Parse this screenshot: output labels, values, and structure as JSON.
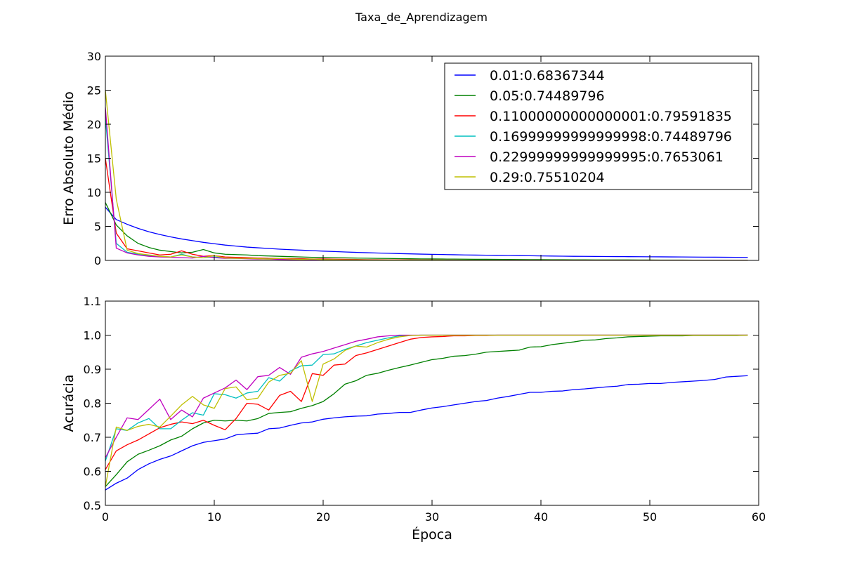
{
  "figure_title": "Taxa_de_Aprendizagem",
  "colors": [
    "#0000ff",
    "#008000",
    "#ff0000",
    "#00bfbf",
    "#bf00bf",
    "#bfbf00"
  ],
  "chart_data": [
    {
      "type": "line",
      "title": "",
      "xlabel": "",
      "ylabel": "Erro Absoluto Médio",
      "xlim": [
        0,
        60
      ],
      "ylim": [
        0,
        30
      ],
      "xticks": [
        0,
        10,
        20,
        30,
        40,
        50,
        60
      ],
      "yticks": [
        0,
        5,
        10,
        15,
        20,
        25,
        30
      ],
      "show_xtick_labels": false,
      "grid": false,
      "legend": "top-right",
      "legend_entries": [
        "0.01:0.68367344",
        "0.05:0.74489796",
        "0.11000000000000001:0.79591835",
        "0.16999999999999998:0.74489796",
        "0.22999999999999995:0.7653061",
        "0.29:0.75510204"
      ],
      "series": [
        {
          "name": "0.01:0.68367344",
          "values": [
            7.8,
            6.0,
            5.3,
            4.7,
            4.2,
            3.8,
            3.45,
            3.15,
            2.9,
            2.65,
            2.45,
            2.25,
            2.1,
            1.95,
            1.85,
            1.75,
            1.65,
            1.57,
            1.5,
            1.43,
            1.36,
            1.3,
            1.24,
            1.18,
            1.13,
            1.08,
            1.04,
            1.0,
            0.96,
            0.92,
            0.89,
            0.86,
            0.83,
            0.8,
            0.78,
            0.76,
            0.74,
            0.72,
            0.7,
            0.68,
            0.66,
            0.64,
            0.62,
            0.6,
            0.59,
            0.58,
            0.57,
            0.56,
            0.55,
            0.54,
            0.53,
            0.52,
            0.51,
            0.5,
            0.49,
            0.48,
            0.47,
            0.46,
            0.45,
            0.44
          ]
        },
        {
          "name": "0.05:0.74489796",
          "values": [
            8.5,
            5.2,
            3.6,
            2.5,
            1.9,
            1.5,
            1.3,
            1.1,
            1.2,
            1.6,
            1.1,
            0.9,
            0.85,
            0.8,
            0.7,
            0.65,
            0.6,
            0.55,
            0.5,
            0.45,
            0.42,
            0.4,
            0.37,
            0.34,
            0.32,
            0.3,
            0.28,
            0.26,
            0.24,
            0.22,
            0.21,
            0.2,
            0.19,
            0.18,
            0.17,
            0.16,
            0.15,
            0.14,
            0.13,
            0.12,
            0.11,
            0.1,
            0.1,
            0.09,
            0.09,
            0.08,
            0.08,
            0.07,
            0.07,
            0.06,
            0.06,
            0.05,
            0.05,
            0.05,
            0.04,
            0.04,
            0.04,
            0.03,
            0.03,
            0.03
          ]
        },
        {
          "name": "0.11000000000000001:0.79591835",
          "values": [
            15.0,
            4.0,
            1.7,
            1.4,
            1.1,
            0.8,
            0.9,
            1.4,
            0.9,
            0.6,
            0.7,
            0.5,
            0.45,
            0.4,
            0.35,
            0.3,
            0.3,
            0.25,
            0.25,
            0.2,
            0.2,
            0.18,
            0.16,
            0.14,
            0.12,
            0.1,
            0.09,
            0.08,
            0.07,
            0.06,
            0.06,
            0.05,
            0.05,
            0.04,
            0.04,
            0.03,
            0.03,
            0.03,
            0.02,
            0.02,
            0.02,
            0.02,
            0.02,
            0.01,
            0.01,
            0.01,
            0.01,
            0.01,
            0.01,
            0.01,
            0.01,
            0.01,
            0.01,
            0.01,
            0.01,
            0.01,
            0.01,
            0.01,
            0.01,
            0.01
          ]
        },
        {
          "name": "0.16999999999999998:0.74489796",
          "values": [
            21.0,
            2.5,
            1.2,
            0.9,
            0.7,
            0.6,
            0.5,
            0.9,
            0.5,
            0.4,
            0.5,
            0.35,
            0.3,
            0.3,
            0.25,
            0.2,
            0.2,
            0.15,
            0.15,
            0.12,
            0.1,
            0.1,
            0.08,
            0.07,
            0.06,
            0.05,
            0.05,
            0.04,
            0.04,
            0.03,
            0.03,
            0.03,
            0.02,
            0.02,
            0.02,
            0.02,
            0.02,
            0.01,
            0.01,
            0.01,
            0.01,
            0.01,
            0.01,
            0.01,
            0.01,
            0.01,
            0.01,
            0.01,
            0.01,
            0.01,
            0.01,
            0.01,
            0.01,
            0.01,
            0.01,
            0.01,
            0.01,
            0.01,
            0.01,
            0.01
          ]
        },
        {
          "name": "0.22999999999999995:0.7653061",
          "values": [
            22.5,
            1.8,
            1.1,
            0.8,
            0.6,
            0.5,
            0.45,
            0.4,
            0.35,
            0.6,
            0.4,
            0.3,
            0.3,
            0.25,
            0.2,
            0.2,
            0.15,
            0.12,
            0.1,
            0.1,
            0.08,
            0.07,
            0.06,
            0.05,
            0.05,
            0.04,
            0.04,
            0.03,
            0.03,
            0.02,
            0.02,
            0.02,
            0.02,
            0.01,
            0.01,
            0.01,
            0.01,
            0.01,
            0.01,
            0.01,
            0.01,
            0.01,
            0.01,
            0.01,
            0.01,
            0.01,
            0.01,
            0.01,
            0.01,
            0.01,
            0.01,
            0.01,
            0.01,
            0.01,
            0.01,
            0.01,
            0.01,
            0.01,
            0.01,
            0.01
          ]
        },
        {
          "name": "0.29:0.75510204",
          "values": [
            25.0,
            9.0,
            1.5,
            1.0,
            0.8,
            0.6,
            0.5,
            0.8,
            0.5,
            0.4,
            0.7,
            0.35,
            0.3,
            0.3,
            0.25,
            0.2,
            0.3,
            0.2,
            0.15,
            0.2,
            0.12,
            0.1,
            0.08,
            0.07,
            0.06,
            0.05,
            0.05,
            0.04,
            0.04,
            0.03,
            0.03,
            0.03,
            0.02,
            0.02,
            0.02,
            0.02,
            0.02,
            0.01,
            0.01,
            0.01,
            0.01,
            0.01,
            0.01,
            0.01,
            0.01,
            0.01,
            0.01,
            0.01,
            0.01,
            0.01,
            0.01,
            0.01,
            0.01,
            0.01,
            0.01,
            0.01,
            0.01,
            0.01,
            0.01,
            0.01
          ]
        }
      ]
    },
    {
      "type": "line",
      "title": "",
      "xlabel": "Época",
      "ylabel": "Acurácia",
      "xlim": [
        0,
        60
      ],
      "ylim": [
        0.5,
        1.1
      ],
      "xticks": [
        0,
        10,
        20,
        30,
        40,
        50,
        60
      ],
      "yticks": [
        0.5,
        0.6,
        0.7,
        0.8,
        0.9,
        1.0,
        1.1
      ],
      "show_xtick_labels": true,
      "grid": false,
      "series": [
        {
          "name": "0.01:0.68367344",
          "values": [
            0.545,
            0.565,
            0.58,
            0.605,
            0.622,
            0.635,
            0.645,
            0.66,
            0.675,
            0.685,
            0.69,
            0.695,
            0.707,
            0.71,
            0.712,
            0.725,
            0.727,
            0.735,
            0.742,
            0.745,
            0.753,
            0.757,
            0.76,
            0.762,
            0.763,
            0.768,
            0.77,
            0.773,
            0.773,
            0.78,
            0.786,
            0.79,
            0.795,
            0.8,
            0.805,
            0.808,
            0.815,
            0.82,
            0.826,
            0.832,
            0.832,
            0.835,
            0.836,
            0.84,
            0.842,
            0.845,
            0.848,
            0.85,
            0.855,
            0.856,
            0.858,
            0.858,
            0.861,
            0.863,
            0.865,
            0.867,
            0.87,
            0.877,
            0.879,
            0.881
          ]
        },
        {
          "name": "0.05:0.74489796",
          "values": [
            0.555,
            0.59,
            0.628,
            0.65,
            0.662,
            0.675,
            0.692,
            0.703,
            0.725,
            0.742,
            0.75,
            0.748,
            0.75,
            0.748,
            0.755,
            0.77,
            0.773,
            0.775,
            0.785,
            0.793,
            0.805,
            0.828,
            0.856,
            0.866,
            0.882,
            0.888,
            0.897,
            0.905,
            0.912,
            0.92,
            0.928,
            0.932,
            0.938,
            0.94,
            0.944,
            0.95,
            0.952,
            0.954,
            0.956,
            0.965,
            0.966,
            0.972,
            0.976,
            0.98,
            0.985,
            0.986,
            0.99,
            0.992,
            0.995,
            0.996,
            0.997,
            0.998,
            0.998,
            0.998,
            0.999,
            0.999,
            0.999,
            0.999,
            0.999,
            1.0
          ]
        },
        {
          "name": "0.11000000000000001:0.79591835",
          "values": [
            0.605,
            0.66,
            0.678,
            0.692,
            0.71,
            0.728,
            0.738,
            0.745,
            0.74,
            0.75,
            0.735,
            0.722,
            0.755,
            0.8,
            0.797,
            0.78,
            0.823,
            0.835,
            0.805,
            0.887,
            0.882,
            0.912,
            0.915,
            0.94,
            0.948,
            0.958,
            0.968,
            0.978,
            0.988,
            0.993,
            0.995,
            0.996,
            0.998,
            0.998,
            0.999,
            0.999,
            1.0,
            1.0,
            1.0,
            1.0,
            1.0,
            1.0,
            1.0,
            1.0,
            1.0,
            1.0,
            1.0,
            1.0,
            1.0,
            1.0,
            1.0,
            1.0,
            1.0,
            1.0,
            1.0,
            1.0,
            1.0,
            1.0,
            1.0,
            1.0
          ]
        },
        {
          "name": "0.16999999999999998:0.74489796",
          "values": [
            0.63,
            0.725,
            0.72,
            0.742,
            0.755,
            0.725,
            0.725,
            0.75,
            0.772,
            0.765,
            0.828,
            0.825,
            0.815,
            0.83,
            0.835,
            0.875,
            0.865,
            0.895,
            0.91,
            0.912,
            0.943,
            0.945,
            0.958,
            0.968,
            0.978,
            0.985,
            0.992,
            0.998,
            0.999,
            1.0,
            1.0,
            1.0,
            1.0,
            1.0,
            1.0,
            1.0,
            1.0,
            1.0,
            1.0,
            1.0,
            1.0,
            1.0,
            1.0,
            1.0,
            1.0,
            1.0,
            1.0,
            1.0,
            1.0,
            1.0,
            1.0,
            1.0,
            1.0,
            1.0,
            1.0,
            1.0,
            1.0,
            1.0,
            1.0,
            1.0
          ]
        },
        {
          "name": "0.22999999999999995:0.7653061",
          "values": [
            0.64,
            0.7,
            0.757,
            0.752,
            0.782,
            0.812,
            0.752,
            0.78,
            0.76,
            0.815,
            0.83,
            0.845,
            0.868,
            0.84,
            0.878,
            0.882,
            0.905,
            0.885,
            0.935,
            0.945,
            0.952,
            0.962,
            0.972,
            0.982,
            0.988,
            0.995,
            0.998,
            1.0,
            1.0,
            1.0,
            1.0,
            1.0,
            1.0,
            1.0,
            1.0,
            1.0,
            1.0,
            1.0,
            1.0,
            1.0,
            1.0,
            1.0,
            1.0,
            1.0,
            1.0,
            1.0,
            1.0,
            1.0,
            1.0,
            1.0,
            1.0,
            1.0,
            1.0,
            1.0,
            1.0,
            1.0,
            1.0,
            1.0,
            1.0,
            1.0
          ]
        },
        {
          "name": "0.29:0.75510204",
          "values": [
            0.555,
            0.73,
            0.72,
            0.732,
            0.738,
            0.73,
            0.762,
            0.795,
            0.82,
            0.795,
            0.785,
            0.843,
            0.848,
            0.81,
            0.815,
            0.862,
            0.882,
            0.888,
            0.925,
            0.805,
            0.915,
            0.93,
            0.955,
            0.968,
            0.965,
            0.978,
            0.988,
            0.995,
            0.999,
            1.0,
            1.0,
            1.0,
            1.0,
            1.0,
            1.0,
            1.0,
            1.0,
            1.0,
            1.0,
            1.0,
            1.0,
            1.0,
            1.0,
            1.0,
            1.0,
            1.0,
            1.0,
            1.0,
            1.0,
            1.0,
            1.0,
            1.0,
            1.0,
            1.0,
            1.0,
            1.0,
            1.0,
            1.0,
            1.0,
            1.0
          ]
        }
      ]
    }
  ]
}
